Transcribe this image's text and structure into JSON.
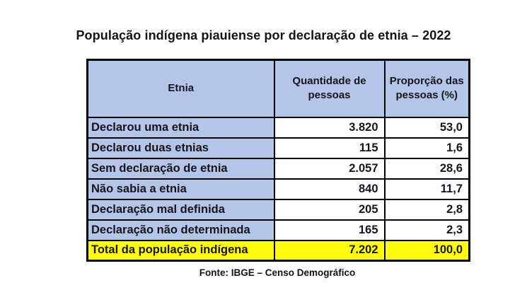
{
  "title": "População indígena piauiense por declaração de etnia – 2022",
  "table": {
    "headers": {
      "etnia": "Etnia",
      "quantity": "Quantidade de pessoas",
      "proportion": "Proporção das pessoas (%)"
    },
    "rows": [
      {
        "label": "Declarou uma etnia",
        "quantity": "3.820",
        "proportion": "53,0"
      },
      {
        "label": "Declarou duas etnias",
        "quantity": "115",
        "proportion": "1,6"
      },
      {
        "label": "Sem declaração de etnia",
        "quantity": "2.057",
        "proportion": "28,6"
      },
      {
        "label": "Não sabia a etnia",
        "quantity": "840",
        "proportion": "11,7"
      },
      {
        "label": "Declaração mal definida",
        "quantity": "205",
        "proportion": "2,8"
      },
      {
        "label": "Declaração não determinada",
        "quantity": "165",
        "proportion": "2,3"
      }
    ],
    "total": {
      "label": "Total da população indígena",
      "quantity": "7.202",
      "proportion": "100,0"
    }
  },
  "footer": {
    "source": "Fonte: IBGE – Censo Demográfico"
  },
  "colors": {
    "header_fill": "#b4c6e7",
    "label_fill": "#b4c6e7",
    "total_fill": "#ffff00",
    "border": "#000000",
    "text": "#15151d",
    "background": "#ffffff"
  },
  "chart_data": {
    "type": "table",
    "title": "População indígena piauiense por declaração de etnia – 2022",
    "columns": [
      "Etnia",
      "Quantidade de pessoas",
      "Proporção das pessoas (%)"
    ],
    "rows": [
      {
        "etnia": "Declarou uma etnia",
        "quantidade": 3820,
        "proporcao_pct": 53.0
      },
      {
        "etnia": "Declarou duas etnias",
        "quantidade": 115,
        "proporcao_pct": 1.6
      },
      {
        "etnia": "Sem declaração de etnia",
        "quantidade": 2057,
        "proporcao_pct": 28.6
      },
      {
        "etnia": "Não sabia a etnia",
        "quantidade": 840,
        "proporcao_pct": 11.7
      },
      {
        "etnia": "Declaração mal definida",
        "quantidade": 205,
        "proporcao_pct": 2.8
      },
      {
        "etnia": "Declaração não determinada",
        "quantidade": 165,
        "proporcao_pct": 2.3
      }
    ],
    "total_row": {
      "etnia": "Total da população indígena",
      "quantidade": 7202,
      "proporcao_pct": 100.0
    },
    "source": "Fonte: IBGE – Censo Demográfico"
  }
}
